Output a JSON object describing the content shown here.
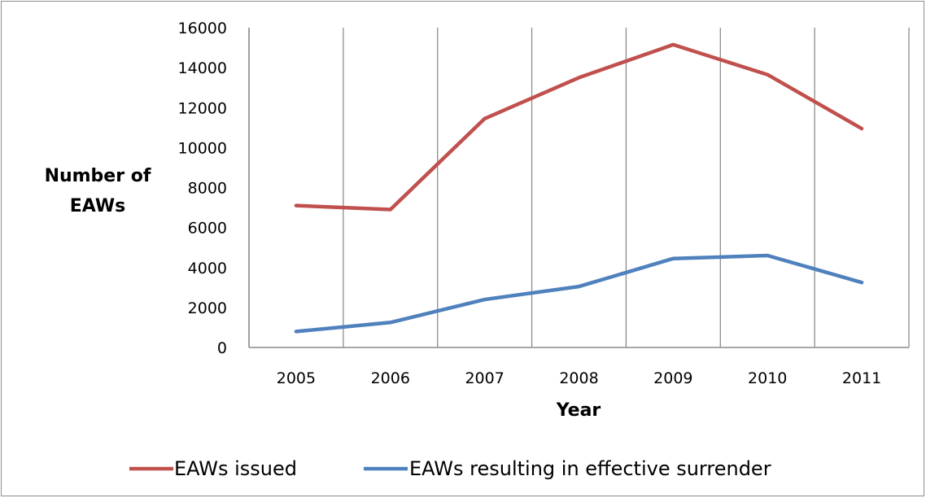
{
  "chart_data": {
    "type": "line",
    "categories": [
      "2005",
      "2006",
      "2007",
      "2008",
      "2009",
      "2010",
      "2011"
    ],
    "series": [
      {
        "name": "EAWs issued",
        "color": "#c0504d",
        "values": [
          7100,
          6900,
          11450,
          13500,
          15150,
          13650,
          10950
        ]
      },
      {
        "name": "EAWs resulting in effective surrender",
        "color": "#4f81bd",
        "values": [
          800,
          1250,
          2400,
          3050,
          4450,
          4600,
          3250
        ]
      }
    ],
    "ylim": [
      0,
      16000
    ],
    "yticks": [
      "0",
      "2000",
      "4000",
      "6000",
      "8000",
      "10000",
      "12000",
      "14000",
      "16000"
    ],
    "xlabel": "Year",
    "ylabel_lines": [
      "Number of",
      "EAWs"
    ],
    "legend_position": "bottom",
    "grid": "vertical"
  }
}
